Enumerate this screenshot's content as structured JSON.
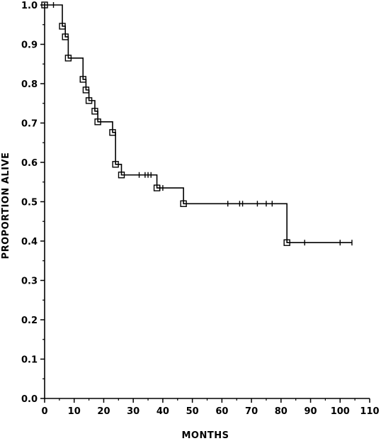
{
  "chart_data": {
    "type": "line",
    "xlabel": "MONTHS",
    "ylabel": "PROPORTION ALIVE",
    "xlim": [
      0,
      110
    ],
    "ylim": [
      0,
      1
    ],
    "x_ticks": [
      0,
      10,
      20,
      30,
      40,
      50,
      60,
      70,
      80,
      90,
      100,
      110
    ],
    "y_ticks": [
      0.0,
      0.1,
      0.2,
      0.3,
      0.4,
      0.5,
      0.6,
      0.7,
      0.8,
      0.9,
      1.0
    ],
    "x_tick_labels": [
      "0",
      "10",
      "20",
      "30",
      "40",
      "50",
      "60",
      "70",
      "80",
      "90",
      "100",
      "110"
    ],
    "y_tick_labels": [
      "0.0",
      "0.1",
      "0.2",
      "0.3",
      "0.4",
      "0.5",
      "0.6",
      "0.7",
      "0.8",
      "0.9",
      "1.0"
    ],
    "grid": false,
    "series": [
      {
        "step_curve": [
          {
            "x": 0,
            "y": 1.0
          },
          {
            "x": 6,
            "y": 0.946
          },
          {
            "x": 7,
            "y": 0.919
          },
          {
            "x": 8,
            "y": 0.865
          },
          {
            "x": 13,
            "y": 0.811
          },
          {
            "x": 14,
            "y": 0.784
          },
          {
            "x": 15,
            "y": 0.757
          },
          {
            "x": 17,
            "y": 0.73
          },
          {
            "x": 18,
            "y": 0.703
          },
          {
            "x": 23,
            "y": 0.676
          },
          {
            "x": 24,
            "y": 0.595
          },
          {
            "x": 26,
            "y": 0.568
          },
          {
            "x": 38,
            "y": 0.535
          },
          {
            "x": 47,
            "y": 0.495
          },
          {
            "x": 82,
            "y": 0.396
          }
        ],
        "x_end": 104,
        "event_markers": [
          {
            "x": 0,
            "y": 1.0
          },
          {
            "x": 6,
            "y": 0.946
          },
          {
            "x": 7,
            "y": 0.919
          },
          {
            "x": 8,
            "y": 0.865
          },
          {
            "x": 13,
            "y": 0.811
          },
          {
            "x": 14,
            "y": 0.784
          },
          {
            "x": 15,
            "y": 0.757
          },
          {
            "x": 17,
            "y": 0.73
          },
          {
            "x": 18,
            "y": 0.703
          },
          {
            "x": 23,
            "y": 0.676
          },
          {
            "x": 24,
            "y": 0.595
          },
          {
            "x": 26,
            "y": 0.568
          },
          {
            "x": 38,
            "y": 0.535
          },
          {
            "x": 47,
            "y": 0.495
          },
          {
            "x": 82,
            "y": 0.396
          }
        ],
        "censor_ticks": [
          {
            "x": 3,
            "y": 1.0
          },
          {
            "x": 32,
            "y": 0.568
          },
          {
            "x": 34,
            "y": 0.568
          },
          {
            "x": 35,
            "y": 0.568
          },
          {
            "x": 36,
            "y": 0.568
          },
          {
            "x": 39,
            "y": 0.535
          },
          {
            "x": 40,
            "y": 0.535
          },
          {
            "x": 62,
            "y": 0.495
          },
          {
            "x": 66,
            "y": 0.495
          },
          {
            "x": 67,
            "y": 0.495
          },
          {
            "x": 72,
            "y": 0.495
          },
          {
            "x": 75,
            "y": 0.495
          },
          {
            "x": 77,
            "y": 0.495
          },
          {
            "x": 88,
            "y": 0.396
          },
          {
            "x": 100,
            "y": 0.396
          },
          {
            "x": 104,
            "y": 0.396
          }
        ]
      }
    ]
  }
}
